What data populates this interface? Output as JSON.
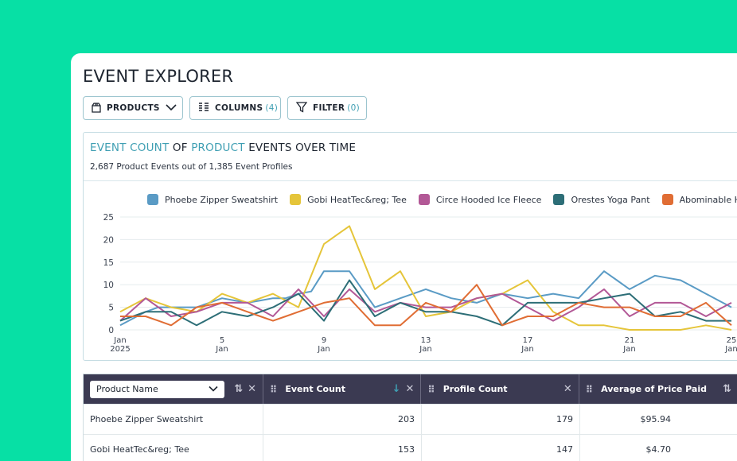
{
  "page": {
    "title": "EVENT EXPLORER"
  },
  "toolbar": {
    "products_label": "PRODUCTS",
    "columns_label": "COLUMNS",
    "columns_count": "(4)",
    "filter_label": "FILTER",
    "filter_count": "(0)"
  },
  "card": {
    "title_part1": "EVENT COUNT",
    "title_part2": " OF ",
    "title_part3": "PRODUCT",
    "title_part4": " EVENTS OVER TIME",
    "subtitle": "2,687 Product Events out of 1,385 Event Profiles"
  },
  "chart_data": {
    "type": "line",
    "title": "EVENT COUNT OF PRODUCT EVENTS OVER TIME",
    "ylim": [
      0,
      25
    ],
    "y_ticks": [
      "25",
      "20",
      "15",
      "10",
      "5",
      "0"
    ],
    "x_ticks": [
      {
        "day": 1,
        "line1": "Jan",
        "line2": "2025"
      },
      {
        "day": 5,
        "line1": "5",
        "line2": "Jan"
      },
      {
        "day": 9,
        "line1": "9",
        "line2": "Jan"
      },
      {
        "day": 13,
        "line1": "13",
        "line2": "Jan"
      },
      {
        "day": 17,
        "line1": "17",
        "line2": "Jan"
      },
      {
        "day": 21,
        "line1": "21",
        "line2": "Jan"
      },
      {
        "day": 25,
        "line1": "25",
        "line2": "Jan"
      }
    ],
    "x": [
      1,
      1.5,
      2,
      2.5,
      3,
      3.5,
      4,
      4.5,
      5,
      5.5,
      6,
      6.5,
      7,
      7.5,
      8,
      8.5,
      9,
      9.5,
      10,
      10.5,
      11,
      11.5,
      12,
      12.5,
      13,
      13.5,
      14,
      14.5,
      15,
      15.5,
      16,
      16.5,
      17,
      17.5,
      18,
      18.5,
      19,
      19.5,
      20,
      20.5,
      21,
      21.5,
      22,
      22.5,
      23,
      23.5,
      24,
      24.5,
      25
    ],
    "series": [
      {
        "name": "Phoebe Zipper Sweatshirt",
        "color": "#5a9bc5",
        "values": [
          1,
          2.5,
          4,
          5,
          5,
          5,
          5,
          6,
          7,
          6.5,
          6,
          6.5,
          7,
          7,
          8,
          8.5,
          13,
          13,
          13,
          9,
          5,
          6,
          7,
          8,
          9,
          8,
          7,
          6.5,
          6,
          7,
          8,
          7.5,
          7,
          7.5,
          8,
          7.5,
          7,
          10,
          13,
          11,
          9,
          10.5,
          12,
          11.5,
          11,
          9.5,
          8,
          6.5,
          5
        ]
      },
      {
        "name": "Gobi HeatTec&reg; Tee",
        "color": "#e5c53a",
        "values": [
          4,
          5.5,
          7,
          6,
          5,
          4.5,
          4,
          6,
          8,
          7,
          6,
          7,
          8,
          6.5,
          5,
          12,
          19,
          21,
          23,
          16,
          9,
          11,
          13,
          8,
          3,
          3.5,
          4,
          5.5,
          7,
          7.5,
          8,
          9.5,
          11,
          7.5,
          4,
          2.5,
          1,
          1,
          1,
          0.5,
          0,
          0,
          0,
          0,
          0,
          0.5,
          1,
          0.5,
          0
        ]
      },
      {
        "name": "Circe Hooded Ice Fleece",
        "color": "#b25896",
        "values": [
          2,
          4.5,
          7,
          5,
          3,
          3.5,
          4,
          5,
          6,
          6,
          6,
          4.5,
          3,
          6,
          9,
          6,
          3,
          6,
          9,
          6.5,
          4,
          5,
          6,
          5.5,
          5,
          5,
          5,
          6,
          7,
          7.5,
          8,
          6.5,
          5,
          3.5,
          2,
          3.5,
          5,
          7,
          9,
          6,
          3,
          4.5,
          6,
          6,
          6,
          4.5,
          3,
          4.5,
          6
        ]
      },
      {
        "name": "Orestes Yoga Pant",
        "color": "#2d6e77",
        "values": [
          2,
          3,
          4,
          4,
          4,
          2.5,
          1,
          2.5,
          4,
          3.5,
          3,
          4,
          5,
          6.5,
          8,
          5,
          2,
          6.5,
          11,
          7,
          3,
          4.5,
          6,
          5,
          4,
          4,
          4,
          3.5,
          3,
          2,
          1,
          3.5,
          6,
          6,
          6,
          6,
          6,
          6.5,
          7,
          7.5,
          8,
          5.5,
          3,
          3.5,
          4,
          3,
          2,
          2,
          2
        ]
      },
      {
        "name": "Abominable Hoodie",
        "color": "#e06d34",
        "values": [
          3,
          3,
          3,
          2,
          1,
          3,
          5,
          5.5,
          6,
          5,
          4,
          3,
          2,
          3,
          4,
          5,
          6,
          6.5,
          7,
          4,
          1,
          1,
          1,
          3.5,
          6,
          5,
          4,
          7,
          10,
          5.5,
          1,
          2,
          3,
          3,
          3,
          4.5,
          6,
          5.5,
          5,
          5,
          5,
          4,
          3,
          3,
          3,
          4.5,
          6,
          3.5,
          1
        ]
      }
    ]
  },
  "table": {
    "header": {
      "name_select": "Product Name",
      "event_count": "Event Count",
      "profile_count": "Profile Count",
      "avg_price": "Average of Price Paid"
    },
    "rows": [
      {
        "name": "Phoebe Zipper Sweatshirt",
        "event_count": "203",
        "profile_count": "179",
        "avg_price": "$95.94"
      },
      {
        "name": "Gobi HeatTec&reg; Tee",
        "event_count": "153",
        "profile_count": "147",
        "avg_price": "$4.70"
      }
    ]
  }
}
